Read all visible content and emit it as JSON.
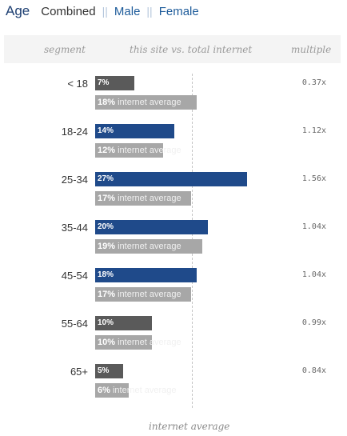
{
  "nav": {
    "title": "Age",
    "tabs": [
      {
        "label": "Combined"
      },
      {
        "label": "Male"
      },
      {
        "label": "Female"
      }
    ],
    "separator": "||"
  },
  "header": {
    "segment": "segment",
    "comparison": "this site vs. total internet",
    "multiple": "multiple"
  },
  "footer_label": "internet average",
  "colors": {
    "above_average": "#1f4a8a",
    "below_average": "#5a5a5a",
    "internet_average": "#a7a7a7"
  },
  "chart_data": {
    "type": "bar",
    "categories": [
      "< 18",
      "18-24",
      "25-34",
      "35-44",
      "45-54",
      "55-64",
      "65+"
    ],
    "series": [
      {
        "values": [
          7,
          14,
          27,
          20,
          18,
          10,
          5
        ]
      },
      {
        "name": "internet average",
        "values": [
          18,
          12,
          17,
          19,
          17,
          10,
          6
        ]
      }
    ],
    "value_labels": [
      "7%",
      "14%",
      "27%",
      "20%",
      "18%",
      "10%",
      "5%"
    ],
    "average_labels": [
      "18%",
      "12%",
      "17%",
      "19%",
      "17%",
      "10%",
      "6%"
    ],
    "average_suffix": "internet average",
    "multiples": [
      "0.37x",
      "1.12x",
      "1.56x",
      "1.04x",
      "1.04x",
      "0.99x",
      "0.84x"
    ],
    "highlighted": [
      false,
      true,
      true,
      true,
      true,
      false,
      false
    ]
  }
}
